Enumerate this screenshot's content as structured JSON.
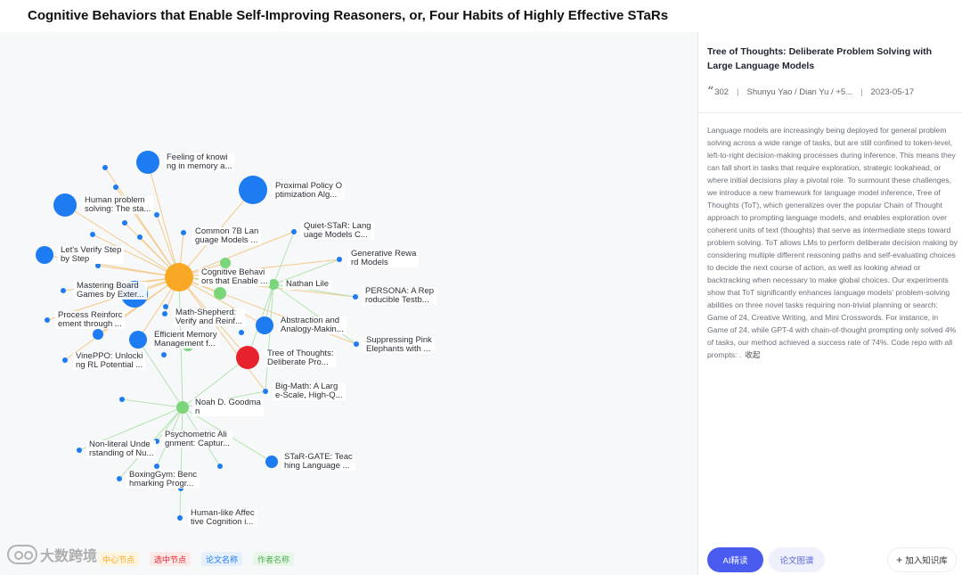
{
  "page": {
    "title": "Cognitive Behaviors that Enable Self-Improving Reasoners, or, Four Habits of Highly Effective STaRs"
  },
  "colors": {
    "center_node": "#f9a825",
    "selected_node": "#e8222d",
    "paper_node": "#1e7cf2",
    "author_node": "#7bd67b",
    "edge_paper": "#f5c98a",
    "edge_author": "#b5e3b0"
  },
  "graph": {
    "labels": [
      {
        "id": "feeling",
        "text": "Feeling of knowi\nng in memory a..."
      },
      {
        "id": "ppo",
        "text": "Proximal Policy O\nptimization Alg..."
      },
      {
        "id": "human",
        "text": "Human problem\nsolving: The sta..."
      },
      {
        "id": "common7b",
        "text": "Common 7B Lan\nguage Models ..."
      },
      {
        "id": "quietstar",
        "text": "Quiet-STaR: Lang\nuage Models C..."
      },
      {
        "id": "verify",
        "text": "Let's Verify Step\nby Step"
      },
      {
        "id": "genreward",
        "text": "Generative Rewa\nrd Models"
      },
      {
        "id": "center",
        "text": "Cognitive Behavi\nors that Enable ..."
      },
      {
        "id": "board",
        "text": "Mastering Board\nGames by Exter..."
      },
      {
        "id": "nathan",
        "text": "Nathan Lile"
      },
      {
        "id": "persona",
        "text": "PERSONA: A Rep\nroducible Testb..."
      },
      {
        "id": "mathshep",
        "text": "Math-Shepherd:\nVerify and Reinf..."
      },
      {
        "id": "process",
        "text": "Process Reinforc\nement through ..."
      },
      {
        "id": "abstraction",
        "text": "Abstraction and\nAnalogy-Makin..."
      },
      {
        "id": "effmem",
        "text": "Efficient Memory\nManagement f..."
      },
      {
        "id": "pink",
        "text": "Suppressing Pink\nElephants with ..."
      },
      {
        "id": "vineppo",
        "text": "VinePPO: Unlocki\nng RL Potential ..."
      },
      {
        "id": "tot",
        "text": "Tree of Thoughts:\nDeliberate Pro..."
      },
      {
        "id": "bigmath",
        "text": "Big-Math: A Larg\ne-Scale, High-Q..."
      },
      {
        "id": "noah",
        "text": "Noah D. Goodma\nn"
      },
      {
        "id": "psycho",
        "text": "Psychometric Ali\ngnment: Captur..."
      },
      {
        "id": "nonliteral",
        "text": "Non-literal Unde\nrstanding of Nu..."
      },
      {
        "id": "stargate",
        "text": "STaR-GATE: Teac\nhing Language ..."
      },
      {
        "id": "boxing",
        "text": "BoxingGym: Benc\nhmarking Progr..."
      },
      {
        "id": "affect",
        "text": "Human-like Affec\ntive Cognition i..."
      }
    ]
  },
  "legend": {
    "items": [
      {
        "label": "中心节点",
        "color": "#f9a825",
        "bg": "#fff4e0"
      },
      {
        "label": "选中节点",
        "color": "#e8222d",
        "bg": "#fde8e8"
      },
      {
        "label": "论文名称",
        "color": "#1e7cf2",
        "bg": "#e6f0fd"
      },
      {
        "label": "作者名称",
        "color": "#4caf50",
        "bg": "#e8f7e8"
      }
    ]
  },
  "watermark": {
    "text": "大数跨境"
  },
  "detail": {
    "title": "Tree of Thoughts: Deliberate Problem Solving with Large Language Models",
    "citations": "302",
    "authors": "Shunyu Yao / Dian Yu / +5...",
    "date": "2023-05-17",
    "abstract": "Language models are increasingly being deployed for general problem solving across a wide range of tasks, but are still confined to token-level, left-to-right decision-making processes during inference. This means they can fall short in tasks that require exploration, strategic lookahead, or where initial decisions play a pivotal role. To surmount these challenges, we introduce a new framework for language model inference, Tree of Thoughts (ToT), which generalizes over the popular Chain of Thought approach to prompting language models, and enables exploration over coherent units of text (thoughts) that serve as intermediate steps toward problem solving. ToT allows LMs to perform deliberate decision making by considering multiple different reasoning paths and self-evaluating choices to decide the next course of action, as well as looking ahead or backtracking when necessary to make global choices. Our experiments show that ToT significantly enhances language models' problem-solving abilities on three novel tasks requiring non-trivial planning or search: Game of 24, Creative Writing, and Mini Crosswords. For instance, in Game of 24, while GPT-4 with chain-of-thought prompting only solved 4% of tasks, our method achieved a success rate of 74%. Code repo with all prompts: .",
    "collapse_label": "收起"
  },
  "actions": {
    "ai_label": "AI精读",
    "graph_label": "论文图谱",
    "kb_label": "加入知识库",
    "kb_icon": "plus-icon"
  }
}
